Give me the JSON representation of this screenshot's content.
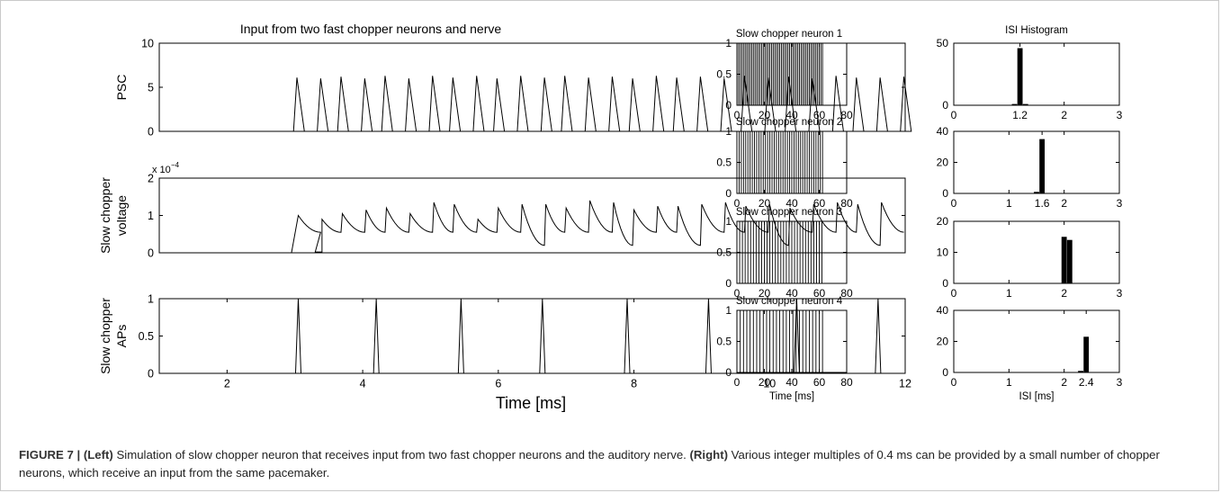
{
  "left_panel": {
    "title": "Input from two fast chopper neurons and nerve",
    "xlabel": "Time [ms]",
    "xticks": [
      "2",
      "4",
      "6",
      "8",
      "10",
      "12"
    ]
  },
  "right_panel": {
    "column_titles": [
      "",
      "ISI Histogram"
    ],
    "xlabel_raster": "Time [ms]",
    "xlabel_hist": "ISI [ms]"
  },
  "caption": {
    "label": "FIGURE 7 | ",
    "left_tag": "(Left)",
    "left_text": " Simulation of slow chopper neuron that receives input from two fast chopper neurons and the auditory nerve. ",
    "right_tag": "(Right)",
    "right_text": " Various integer multiples of 0.4 ms can be provided by a small number of chopper neurons, which receive an input from the same pacemaker."
  },
  "chart_data": [
    {
      "type": "line",
      "ylabel": "PSC",
      "xlim": [
        1,
        12
      ],
      "ylim": [
        0,
        10
      ],
      "yticks": [
        0,
        5,
        10
      ],
      "pulse_times": [
        3.0,
        3.35,
        3.65,
        4.0,
        4.3,
        4.65,
        5.0,
        5.3,
        5.65,
        5.95,
        6.3,
        6.65,
        6.95,
        7.3,
        7.65,
        7.95,
        8.3,
        8.6,
        8.95,
        9.3,
        9.6,
        9.95,
        10.25,
        10.6,
        10.95,
        11.25,
        11.6,
        11.95
      ],
      "pulse_peaks": [
        6.1,
        6.0,
        6.2,
        6.0,
        6.3,
        6.0,
        6.3,
        6.1,
        6.3,
        6.0,
        6.3,
        6.1,
        6.3,
        6.1,
        6.2,
        6.0,
        6.3,
        6.1,
        6.2,
        6.0,
        6.3,
        6.1,
        6.2,
        6.0,
        6.3,
        6.1,
        6.1,
        6.2
      ]
    },
    {
      "type": "line",
      "ylabel": "Slow chopper voltage",
      "y_multiplier": "x 10",
      "y_exponent": "−4",
      "xlim": [
        1,
        12
      ],
      "ylim": [
        0,
        2
      ],
      "yticks": [
        0,
        1,
        2
      ],
      "spike_times": [
        3.05,
        4.2,
        5.45,
        6.65,
        7.9,
        9.1,
        10.4,
        11.6
      ],
      "peak_times": [
        3.05,
        3.4,
        3.7,
        4.05,
        4.35,
        4.7,
        5.05,
        5.35,
        5.7,
        6.0,
        6.35,
        6.7,
        7.0,
        7.35,
        7.7,
        8.0,
        8.35,
        8.65,
        9.0,
        9.35,
        9.65,
        10.0,
        10.3,
        10.65,
        11.0,
        11.3,
        11.65
      ],
      "peak_values": [
        1.0,
        0.9,
        1.05,
        1.15,
        1.2,
        1.05,
        1.35,
        1.3,
        0.9,
        1.2,
        1.3,
        1.3,
        1.2,
        1.4,
        1.35,
        1.15,
        1.25,
        1.25,
        1.3,
        1.35,
        1.25,
        1.3,
        1.2,
        1.3,
        1.35,
        1.3,
        1.35
      ]
    },
    {
      "type": "line",
      "ylabel": "Slow chopper APs",
      "xlim": [
        1,
        12
      ],
      "ylim": [
        0,
        1
      ],
      "yticks": [
        0,
        0.5,
        1
      ],
      "spike_times": [
        3.05,
        4.2,
        5.45,
        6.65,
        7.9,
        9.1,
        10.4,
        11.6
      ]
    },
    {
      "type": "raster",
      "title": "Slow chopper neuron 1",
      "xlim": [
        0,
        80
      ],
      "ylim": [
        0,
        1
      ],
      "xticks": [
        0,
        20,
        40,
        60,
        80
      ],
      "yticks": [
        0,
        0.5,
        1
      ],
      "interval": 1.2,
      "t_end": 62.5
    },
    {
      "type": "raster",
      "title": "Slow chopper neuron 2",
      "xlim": [
        0,
        80
      ],
      "ylim": [
        0,
        1
      ],
      "xticks": [
        0,
        20,
        40,
        60,
        80
      ],
      "yticks": [
        0,
        0.5,
        1
      ],
      "interval": 1.6,
      "t_end": 62.5
    },
    {
      "type": "raster",
      "title": "Slow chopper neuron 3",
      "xlim": [
        0,
        80
      ],
      "ylim": [
        0,
        1
      ],
      "xticks": [
        0,
        20,
        40,
        60,
        80
      ],
      "yticks": [
        0,
        0.5,
        1
      ],
      "interval": 2.0,
      "t_end": 62.5
    },
    {
      "type": "raster",
      "title": "Slow chopper neuron 4",
      "xlim": [
        0,
        80
      ],
      "ylim": [
        0,
        1
      ],
      "xticks": [
        0,
        20,
        40,
        60,
        80
      ],
      "yticks": [
        0,
        0.5,
        1
      ],
      "interval": 2.4,
      "t_end": 62.5
    },
    {
      "type": "bar",
      "xlim": [
        0,
        3
      ],
      "ylim": [
        0,
        50
      ],
      "yticks": [
        0,
        50
      ],
      "xticks": [
        "0",
        "1.2",
        "2",
        "3"
      ],
      "bins": [
        1.1,
        1.2,
        1.3
      ],
      "values": [
        1,
        46,
        1
      ]
    },
    {
      "type": "bar",
      "xlim": [
        0,
        3
      ],
      "ylim": [
        0,
        40
      ],
      "yticks": [
        0,
        20,
        40
      ],
      "xticks": [
        "0",
        "1",
        "1.6",
        "2",
        "3"
      ],
      "bins": [
        1.5,
        1.6
      ],
      "values": [
        1,
        35
      ]
    },
    {
      "type": "bar",
      "xlim": [
        0,
        3
      ],
      "ylim": [
        0,
        20
      ],
      "yticks": [
        0,
        10,
        20
      ],
      "xticks": [
        "0",
        "1",
        "2",
        "3"
      ],
      "bins": [
        2.0,
        2.1
      ],
      "values": [
        15,
        14
      ]
    },
    {
      "type": "bar",
      "xlim": [
        0,
        3
      ],
      "ylim": [
        0,
        40
      ],
      "yticks": [
        0,
        20,
        40
      ],
      "xticks": [
        "0",
        "1",
        "2",
        "2.4",
        "3"
      ],
      "bins": [
        2.3,
        2.4
      ],
      "values": [
        1,
        23
      ]
    }
  ]
}
